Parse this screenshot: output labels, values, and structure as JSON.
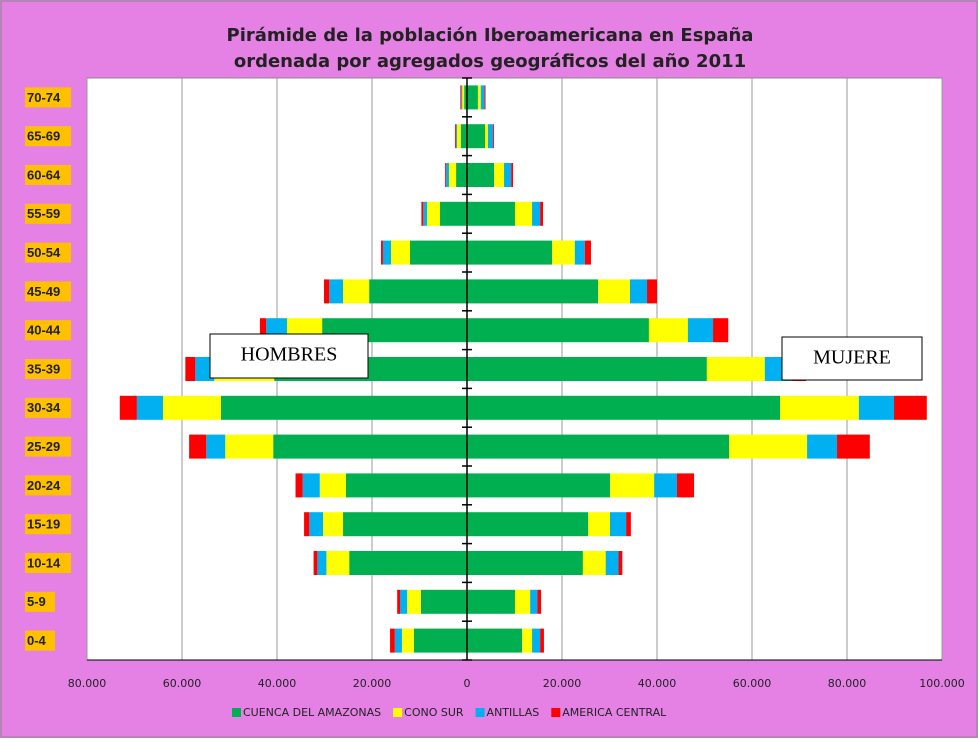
{
  "chart_data": {
    "type": "pyramid",
    "title": [
      "Pirámide de la población Iberoamericana en España",
      "ordenada por agregados geográficos del año 2011"
    ],
    "categories": [
      "0-4",
      "5-9",
      "10-14",
      "15-19",
      "20-24",
      "25-29",
      "30-34",
      "35-39",
      "40-44",
      "45-49",
      "50-54",
      "55-59",
      "60-64",
      "65-69",
      "70-74"
    ],
    "series": [
      {
        "name": "CUENCA DEL AMAZONAS",
        "color": "#00b050",
        "hombres": [
          -11200,
          -9700,
          -24800,
          -26100,
          -25500,
          -40800,
          -51800,
          -40600,
          -30500,
          -20600,
          -12000,
          -5700,
          -2300,
          -1300,
          -600
        ],
        "mujeres": [
          11600,
          10100,
          24400,
          25500,
          30100,
          55200,
          65900,
          50500,
          38300,
          27600,
          17900,
          10100,
          5700,
          3800,
          2300
        ]
      },
      {
        "name": "CONO SUR",
        "color": "#ffff00",
        "hombres": [
          -2500,
          -2900,
          -4800,
          -4200,
          -5500,
          -10100,
          -12200,
          -12600,
          -7400,
          -5500,
          -4000,
          -2700,
          -1500,
          -800,
          -400
        ],
        "mujeres": [
          2100,
          3200,
          4800,
          4600,
          9300,
          16400,
          16600,
          12200,
          8200,
          6700,
          4800,
          3600,
          2100,
          600,
          600
        ]
      },
      {
        "name": "ANTILLAS",
        "color": "#00b0f0",
        "hombres": [
          -1500,
          -1500,
          -1900,
          -2900,
          -3600,
          -4000,
          -5500,
          -4000,
          -4400,
          -2900,
          -1700,
          -800,
          -600,
          -200,
          -200
        ],
        "mujeres": [
          1700,
          1500,
          2700,
          3400,
          4800,
          6300,
          7400,
          5700,
          5300,
          3600,
          2100,
          1700,
          1500,
          1100,
          800
        ]
      },
      {
        "name": "AMERICA CENTRAL",
        "color": "#ff0000",
        "hombres": [
          -1000,
          -600,
          -800,
          -1100,
          -1500,
          -3600,
          -3600,
          -2100,
          -1300,
          -1100,
          -400,
          -400,
          -200,
          -200,
          -200
        ],
        "mujeres": [
          800,
          800,
          800,
          1000,
          3600,
          6900,
          6900,
          3000,
          3200,
          2100,
          1300,
          600,
          400,
          200,
          200
        ]
      }
    ],
    "xlim": [
      -80000,
      100000
    ],
    "xticks": [
      {
        "value": -80000,
        "label": "80.000"
      },
      {
        "value": -60000,
        "label": "60.000"
      },
      {
        "value": -40000,
        "label": "40.000"
      },
      {
        "value": -20000,
        "label": "20.000"
      },
      0,
      {
        "value": 20000,
        "label": "20.000"
      },
      {
        "value": 40000,
        "label": "40.000"
      },
      {
        "value": 60000,
        "label": "60.000"
      },
      {
        "value": 80000,
        "label": "80.000"
      },
      {
        "value": 100000,
        "label": "100.000"
      }
    ],
    "grid": true,
    "annotations": [
      "HOMBRES",
      "MUJERE"
    ]
  }
}
